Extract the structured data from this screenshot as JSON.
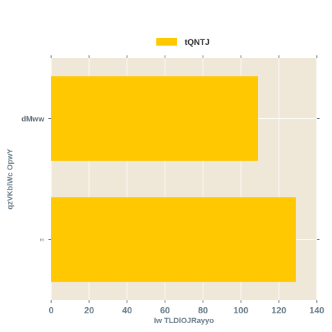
{
  "chart_data": {
    "type": "bar",
    "orientation": "horizontal",
    "categories": [
      "dMww",
      "ns"
    ],
    "series": [
      {
        "name": "tQNTJ",
        "values": [
          109,
          129
        ]
      }
    ],
    "title": "",
    "xlabel": "Iw TLDlOJRayyo",
    "ylabel": "qzVKblWc OpwY",
    "xlim": [
      0,
      140
    ],
    "xticks": [
      "0",
      "20",
      "40",
      "60",
      "80",
      "100",
      "120",
      "140"
    ],
    "grid": true,
    "legend_position": "top-center",
    "colors": {
      "bar": "#ffc800",
      "plot_background": "#efe8d8",
      "grid": "#ffffff",
      "tick_text": "#6b7f8c"
    }
  }
}
